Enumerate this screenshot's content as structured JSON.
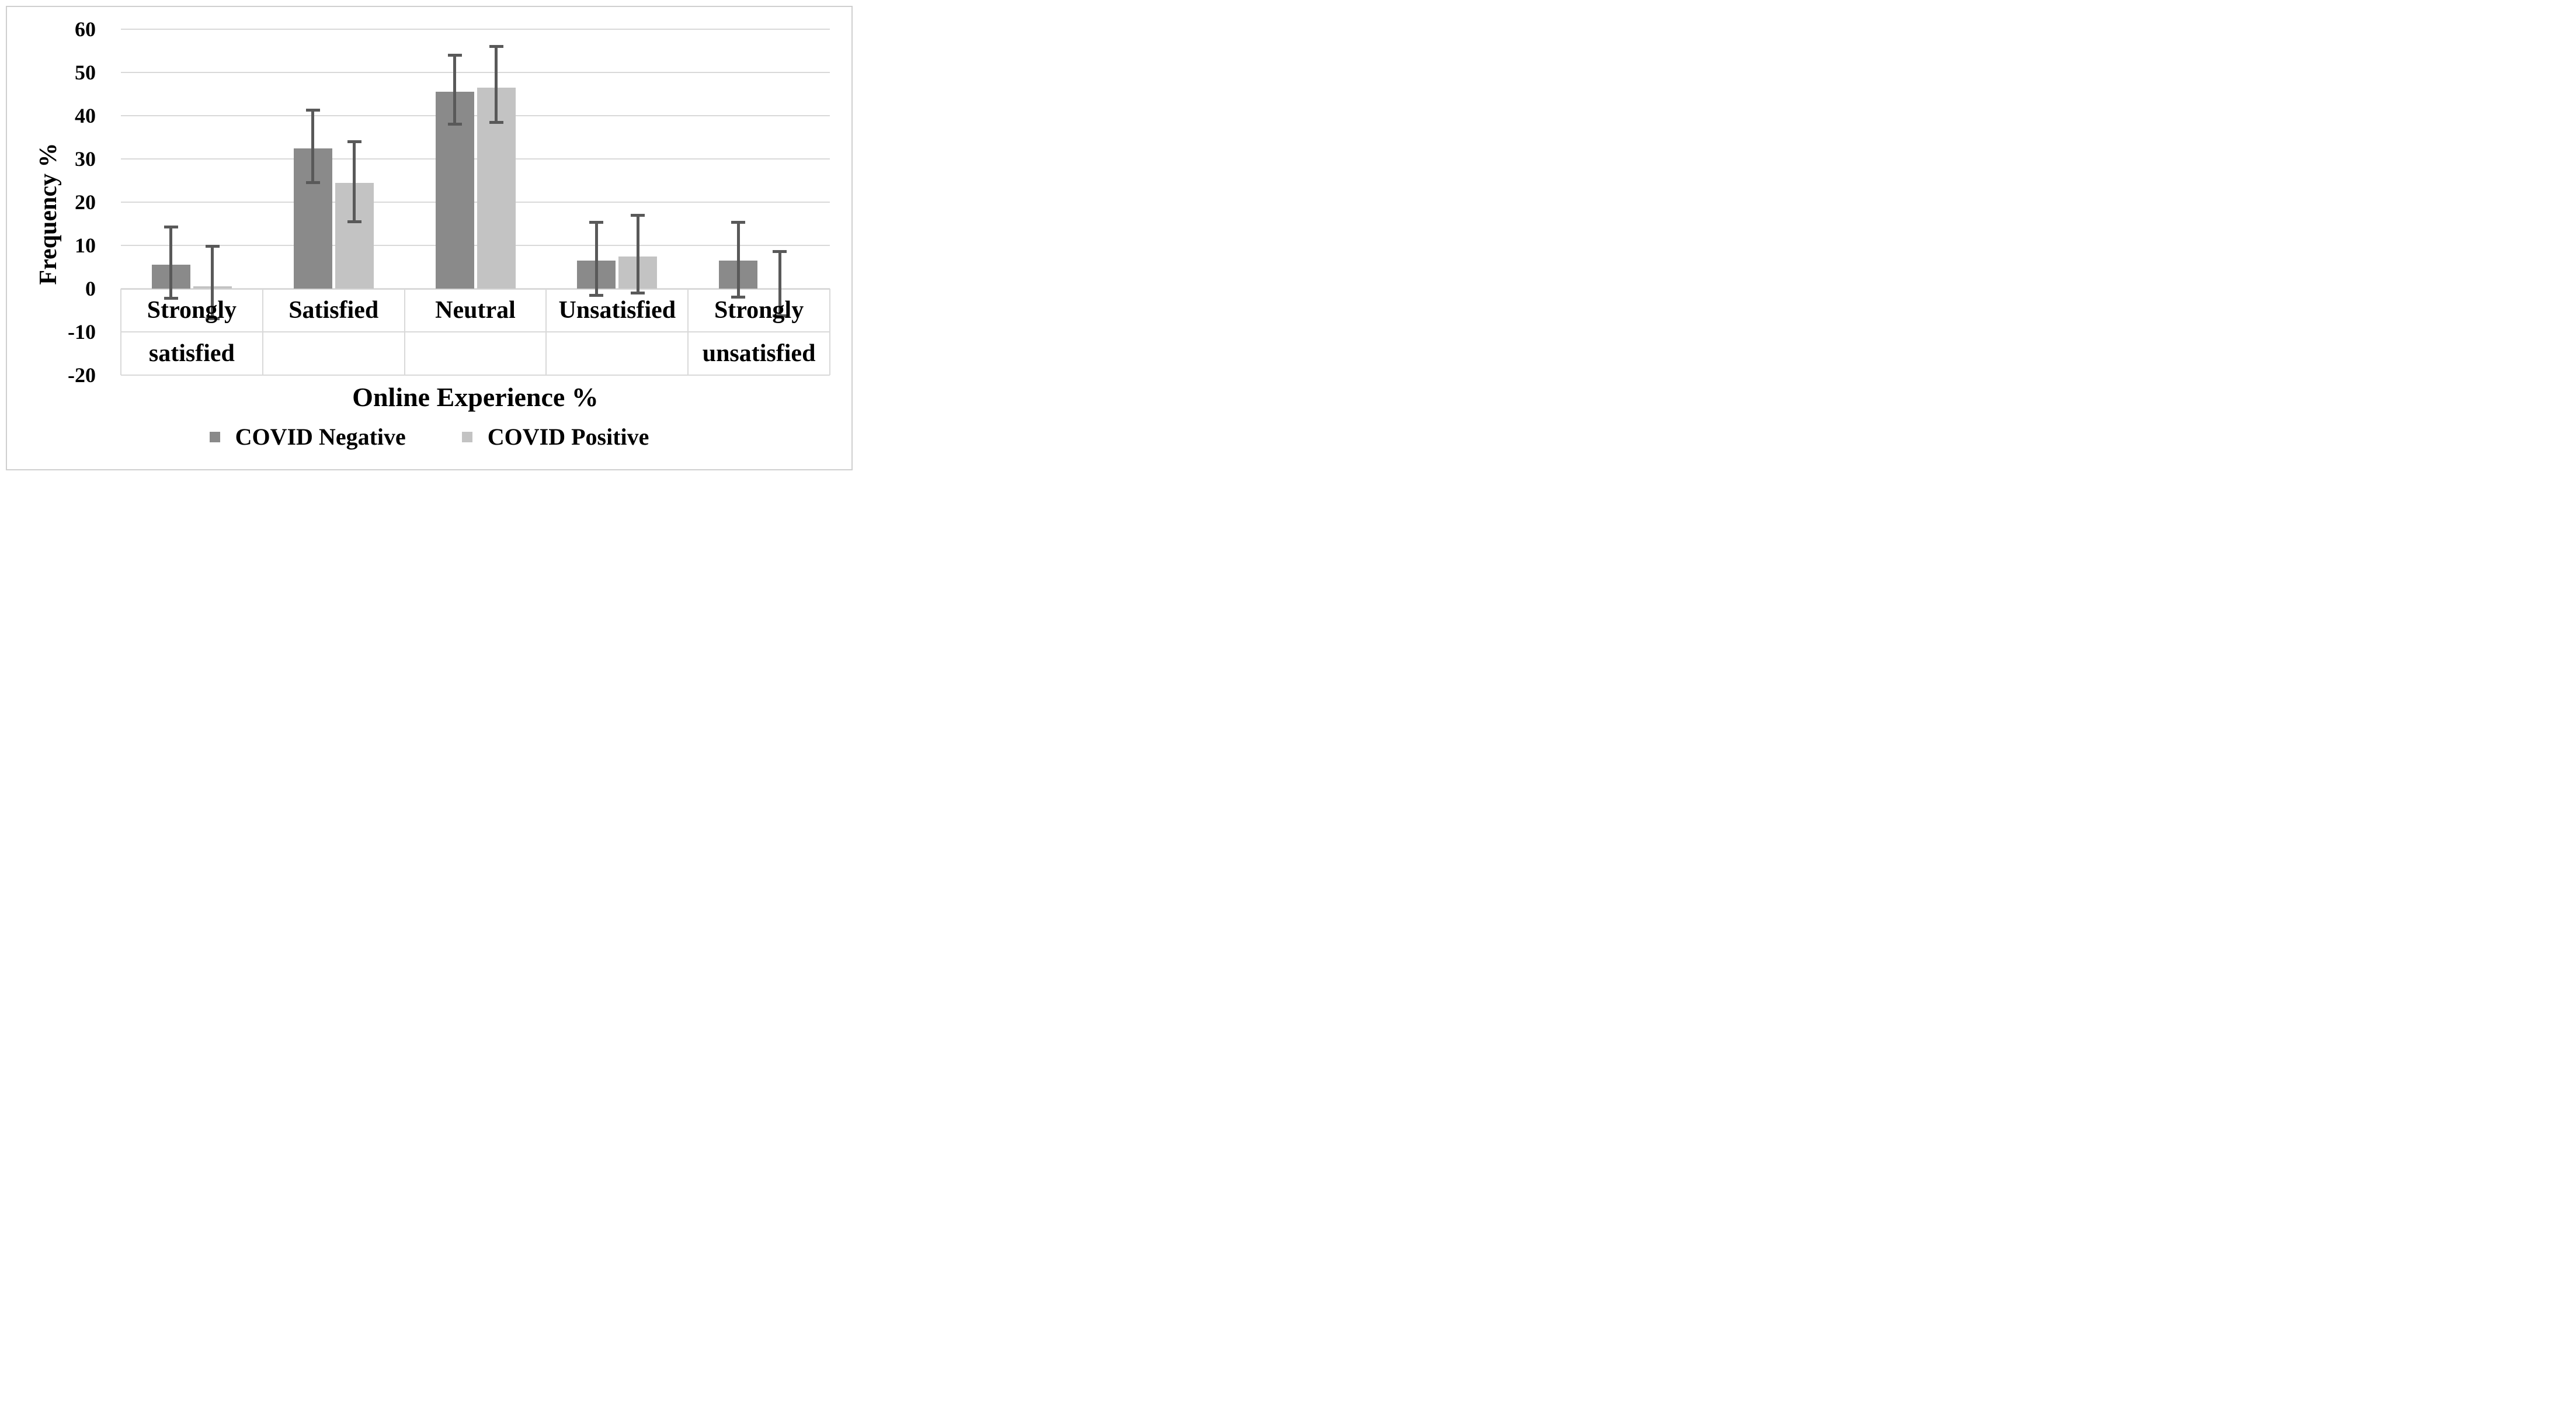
{
  "chart_data": {
    "type": "bar",
    "title": "",
    "xlabel": "Online Experience %",
    "ylabel": "Frequency %",
    "categories": [
      "Strongly satisfied",
      "Satisfied",
      "Neutral",
      "Unsatisfied",
      "Strongly unsatisfied"
    ],
    "categories_lines": [
      [
        "Strongly",
        "satisfied"
      ],
      [
        "Satisfied"
      ],
      [
        "Neutral"
      ],
      [
        "Unsatisfied"
      ],
      [
        "Strongly",
        "unsatisfied"
      ]
    ],
    "y_ticks": [
      60,
      50,
      40,
      30,
      20,
      10,
      0,
      -10,
      -20
    ],
    "ylim": [
      -20,
      60
    ],
    "grid": true,
    "legend_position": "bottom",
    "error_bars": true,
    "series": [
      {
        "name": "COVID Negative",
        "color": "#8a8a8a",
        "values": [
          5.5,
          32.5,
          45.5,
          6.5,
          6.5
        ],
        "error_high": [
          14.3,
          41.3,
          54,
          15.3,
          15.3
        ],
        "error_low": [
          -2.2,
          24.5,
          38,
          -1.5,
          -2
        ]
      },
      {
        "name": "COVID Positive",
        "color": "#c3c3c3",
        "values": [
          0.6,
          24.5,
          46.5,
          7.5,
          0
        ],
        "error_high": [
          9.8,
          34,
          56,
          17,
          8.6
        ],
        "error_low": [
          -7,
          15.5,
          38.5,
          -1,
          -6.3
        ]
      }
    ]
  },
  "colors": {
    "bar_negative": "#8a8a8a",
    "bar_positive": "#c3c3c3",
    "error_bar": "#595959",
    "gridline": "#d9d9d9",
    "zero_line": "#d9d9d9",
    "border": "#cfcfcf",
    "text": "#000000",
    "background": "#ffffff"
  }
}
